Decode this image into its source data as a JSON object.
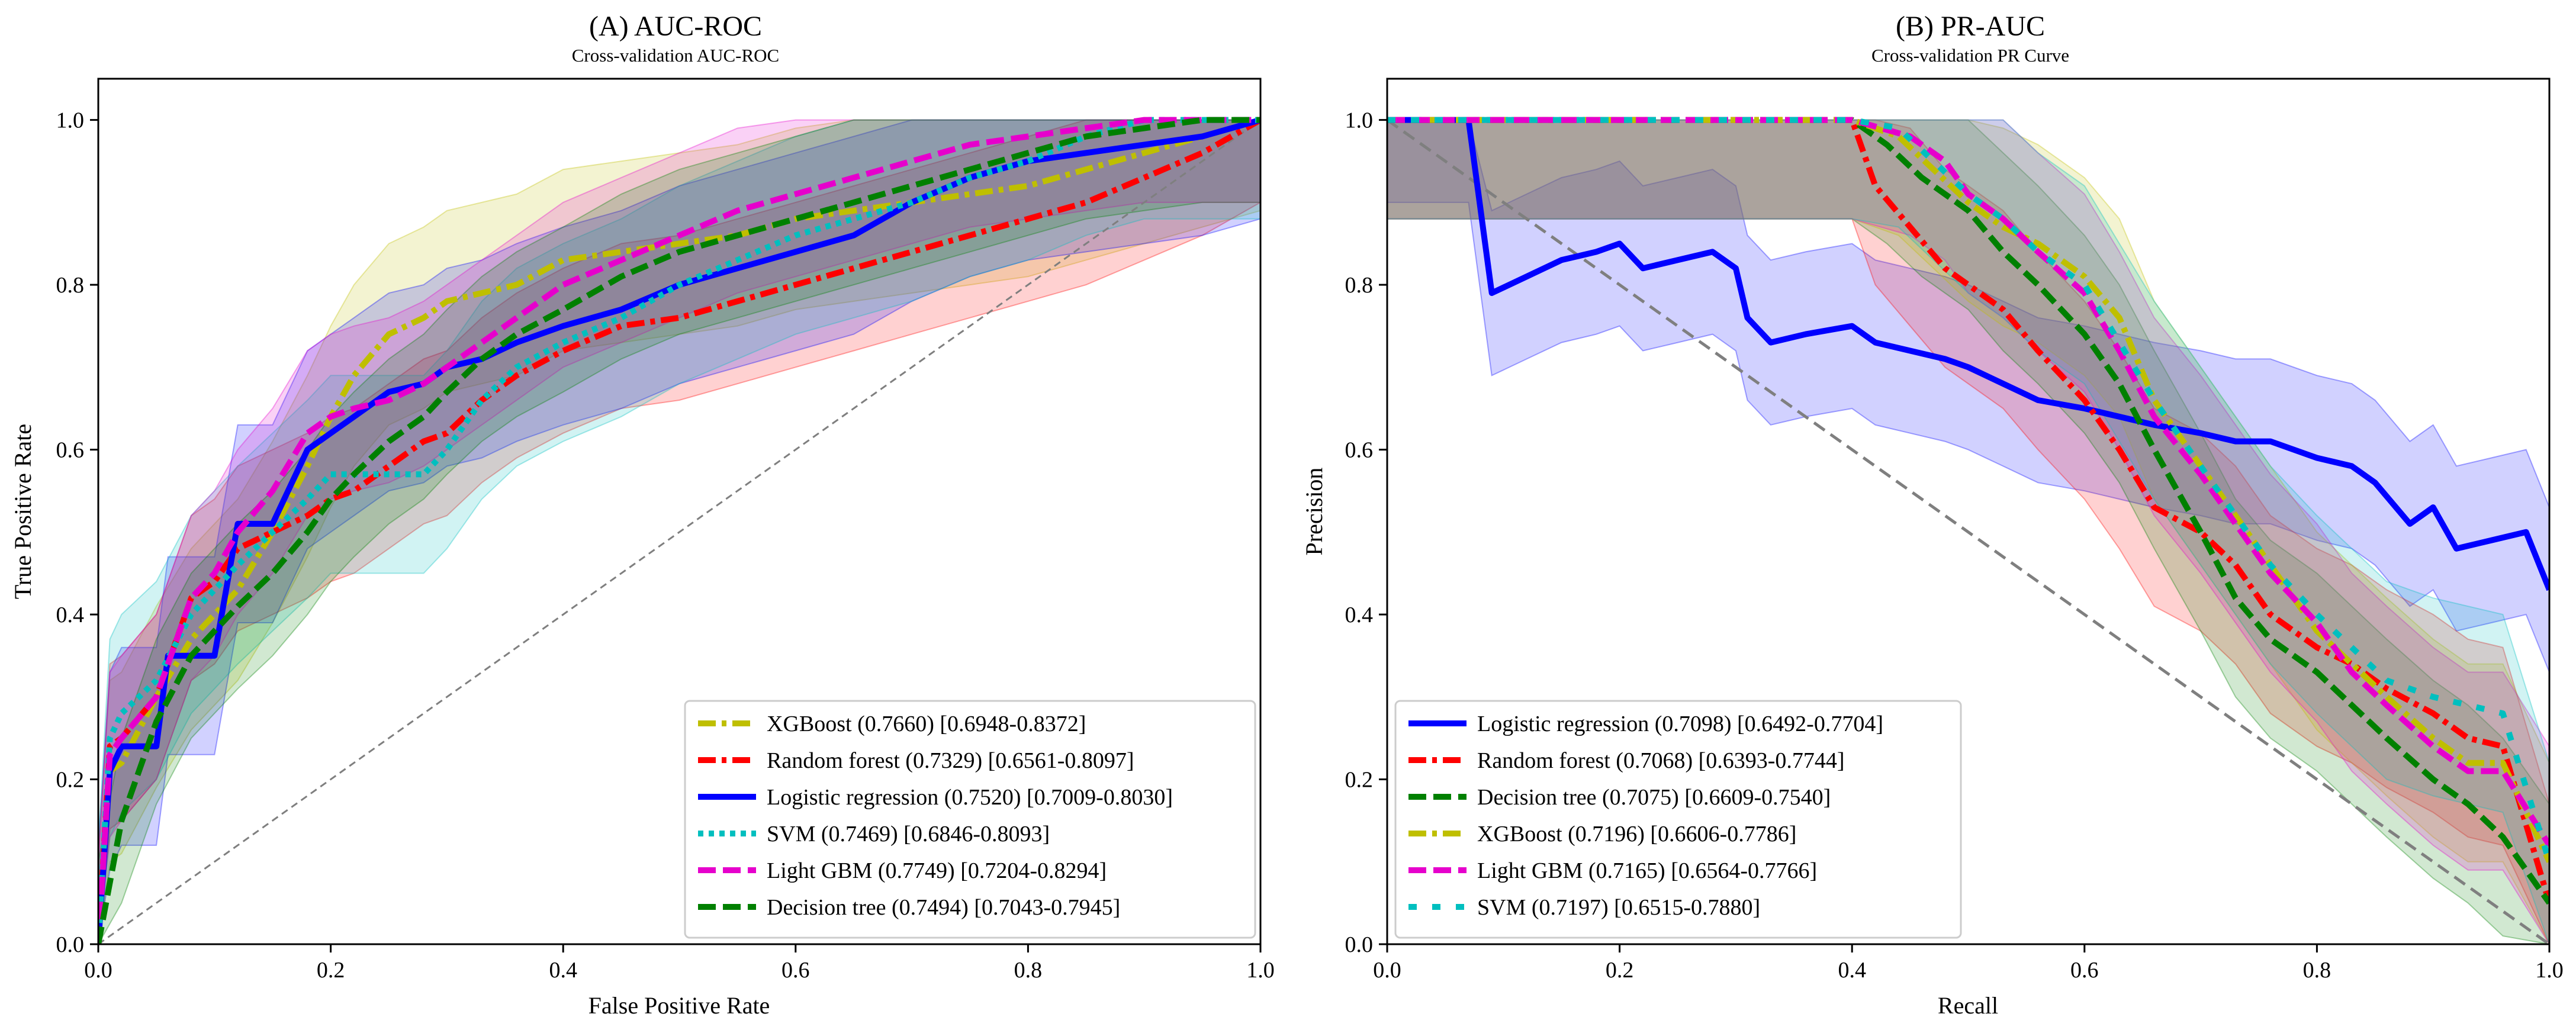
{
  "chart_data": [
    {
      "type": "line",
      "title": "(A) AUC-ROC",
      "subtitle": "Cross-validation AUC-ROC",
      "xlabel": "False Positive Rate",
      "ylabel": "True Positive Rate",
      "xlim": [
        0,
        1
      ],
      "ylim": [
        0,
        1.05
      ],
      "xticks": [
        "0.0",
        "0.2",
        "0.4",
        "0.6",
        "0.8",
        "1.0"
      ],
      "yticks": [
        "0.0",
        "0.2",
        "0.4",
        "0.6",
        "0.8",
        "1.0"
      ],
      "grid": false,
      "legend_position": "lower-right",
      "diagonal": true,
      "series": [
        {
          "name": "XGBoost (0.7660) [0.6948-0.8372]",
          "color": "#bfbf00",
          "dash": "dashdot",
          "x": [
            0,
            0.01,
            0.02,
            0.05,
            0.08,
            0.1,
            0.12,
            0.15,
            0.18,
            0.2,
            0.22,
            0.25,
            0.28,
            0.3,
            0.33,
            0.36,
            0.4,
            0.45,
            0.5,
            0.55,
            0.6,
            0.65,
            0.7,
            0.75,
            0.8,
            0.85,
            0.9,
            0.95,
            1.0
          ],
          "values": [
            0,
            0.21,
            0.22,
            0.3,
            0.37,
            0.4,
            0.43,
            0.5,
            0.58,
            0.64,
            0.69,
            0.74,
            0.76,
            0.78,
            0.79,
            0.8,
            0.83,
            0.84,
            0.85,
            0.86,
            0.88,
            0.89,
            0.9,
            0.91,
            0.92,
            0.94,
            0.96,
            0.98,
            1.0
          ],
          "band": 0.11
        },
        {
          "name": "Random forest (0.7329) [0.6561-0.8097]",
          "color": "#ff0000",
          "dash": "dashdot",
          "x": [
            0,
            0.01,
            0.02,
            0.05,
            0.08,
            0.1,
            0.12,
            0.15,
            0.18,
            0.2,
            0.22,
            0.25,
            0.28,
            0.3,
            0.33,
            0.36,
            0.4,
            0.45,
            0.5,
            0.55,
            0.6,
            0.65,
            0.7,
            0.75,
            0.8,
            0.85,
            0.9,
            0.95,
            1.0
          ],
          "values": [
            0,
            0.24,
            0.25,
            0.3,
            0.42,
            0.44,
            0.48,
            0.5,
            0.52,
            0.54,
            0.55,
            0.58,
            0.61,
            0.62,
            0.66,
            0.69,
            0.72,
            0.75,
            0.76,
            0.78,
            0.8,
            0.82,
            0.84,
            0.86,
            0.88,
            0.9,
            0.93,
            0.96,
            1.0
          ],
          "band": 0.1
        },
        {
          "name": "Logistic regression (0.7520) [0.7009-0.8030]",
          "color": "#0000ff",
          "dash": "solid",
          "x": [
            0,
            0.01,
            0.02,
            0.05,
            0.06,
            0.1,
            0.12,
            0.15,
            0.18,
            0.2,
            0.22,
            0.25,
            0.28,
            0.3,
            0.33,
            0.36,
            0.4,
            0.45,
            0.5,
            0.55,
            0.6,
            0.65,
            0.7,
            0.75,
            0.8,
            0.85,
            0.9,
            0.95,
            1.0
          ],
          "values": [
            0,
            0.21,
            0.24,
            0.24,
            0.35,
            0.35,
            0.51,
            0.51,
            0.6,
            0.62,
            0.64,
            0.67,
            0.68,
            0.7,
            0.71,
            0.73,
            0.75,
            0.77,
            0.8,
            0.82,
            0.84,
            0.86,
            0.9,
            0.93,
            0.95,
            0.96,
            0.97,
            0.98,
            1.0
          ],
          "band": 0.12
        },
        {
          "name": "SVM (0.7469) [0.6846-0.8093]",
          "color": "#00bfbf",
          "dash": "dotted",
          "x": [
            0,
            0.01,
            0.02,
            0.05,
            0.08,
            0.1,
            0.12,
            0.15,
            0.18,
            0.2,
            0.22,
            0.25,
            0.28,
            0.3,
            0.33,
            0.36,
            0.4,
            0.45,
            0.5,
            0.55,
            0.6,
            0.65,
            0.7,
            0.75,
            0.8,
            0.85,
            0.9,
            0.95,
            1.0
          ],
          "values": [
            0,
            0.25,
            0.28,
            0.32,
            0.4,
            0.43,
            0.46,
            0.5,
            0.54,
            0.57,
            0.57,
            0.57,
            0.57,
            0.6,
            0.66,
            0.7,
            0.73,
            0.76,
            0.8,
            0.83,
            0.86,
            0.88,
            0.9,
            0.93,
            0.95,
            0.98,
            1.0,
            1.0,
            1.0
          ],
          "band": 0.12
        },
        {
          "name": "Light GBM (0.7749) [0.7204-0.8294]",
          "color": "#e600cc",
          "dash": "dashed",
          "x": [
            0,
            0.01,
            0.02,
            0.05,
            0.08,
            0.1,
            0.12,
            0.15,
            0.18,
            0.2,
            0.22,
            0.25,
            0.28,
            0.3,
            0.33,
            0.36,
            0.4,
            0.45,
            0.5,
            0.55,
            0.6,
            0.65,
            0.7,
            0.75,
            0.8,
            0.85,
            0.9,
            0.95,
            1.0
          ],
          "values": [
            0,
            0.23,
            0.25,
            0.3,
            0.42,
            0.45,
            0.5,
            0.55,
            0.62,
            0.64,
            0.65,
            0.66,
            0.68,
            0.7,
            0.73,
            0.76,
            0.8,
            0.83,
            0.86,
            0.89,
            0.91,
            0.93,
            0.95,
            0.97,
            0.98,
            0.99,
            1.0,
            1.0,
            1.0
          ],
          "band": 0.1
        },
        {
          "name": "Decision tree (0.7494) [0.7043-0.7945]",
          "color": "#008000",
          "dash": "dashed",
          "x": [
            0,
            0.02,
            0.05,
            0.08,
            0.1,
            0.12,
            0.15,
            0.18,
            0.2,
            0.22,
            0.25,
            0.28,
            0.3,
            0.33,
            0.36,
            0.4,
            0.45,
            0.5,
            0.55,
            0.6,
            0.65,
            0.7,
            0.75,
            0.8,
            0.85,
            0.9,
            0.95,
            1.0
          ],
          "values": [
            0,
            0.15,
            0.27,
            0.35,
            0.38,
            0.41,
            0.45,
            0.5,
            0.54,
            0.57,
            0.61,
            0.64,
            0.67,
            0.71,
            0.74,
            0.77,
            0.81,
            0.84,
            0.86,
            0.88,
            0.9,
            0.92,
            0.94,
            0.96,
            0.98,
            0.99,
            1.0,
            1.0
          ],
          "band": 0.1
        }
      ]
    },
    {
      "type": "line",
      "title": "(B) PR-AUC",
      "subtitle": "Cross-validation PR Curve",
      "xlabel": "Recall",
      "ylabel": "Precision",
      "xlim": [
        0,
        1
      ],
      "ylim": [
        0,
        1.05
      ],
      "xticks": [
        "0.0",
        "0.2",
        "0.4",
        "0.6",
        "0.8",
        "1.0"
      ],
      "yticks": [
        "0.0",
        "0.2",
        "0.4",
        "0.6",
        "0.8",
        "1.0"
      ],
      "grid": false,
      "legend_position": "lower-left",
      "diagonal": true,
      "series": [
        {
          "name": "Logistic regression (0.7098) [0.6492-0.7704]",
          "color": "#0000ff",
          "dash": "solid",
          "x": [
            0,
            0.05,
            0.07,
            0.09,
            0.12,
            0.15,
            0.18,
            0.2,
            0.22,
            0.25,
            0.28,
            0.3,
            0.31,
            0.33,
            0.36,
            0.4,
            0.42,
            0.45,
            0.48,
            0.5,
            0.53,
            0.56,
            0.6,
            0.63,
            0.66,
            0.7,
            0.73,
            0.76,
            0.8,
            0.83,
            0.85,
            0.88,
            0.9,
            0.92,
            0.95,
            0.98,
            1.0
          ],
          "values": [
            1.0,
            1.0,
            1.0,
            0.79,
            0.81,
            0.83,
            0.84,
            0.85,
            0.82,
            0.83,
            0.84,
            0.82,
            0.76,
            0.73,
            0.74,
            0.75,
            0.73,
            0.72,
            0.71,
            0.7,
            0.68,
            0.66,
            0.65,
            0.64,
            0.63,
            0.62,
            0.61,
            0.61,
            0.59,
            0.58,
            0.56,
            0.51,
            0.53,
            0.48,
            0.49,
            0.5,
            0.43
          ],
          "band": 0.1
        },
        {
          "name": "Random forest (0.7068) [0.6393-0.7744]",
          "color": "#ff0000",
          "dash": "dashdot",
          "x": [
            0,
            0.1,
            0.2,
            0.3,
            0.4,
            0.42,
            0.45,
            0.48,
            0.5,
            0.53,
            0.56,
            0.6,
            0.63,
            0.66,
            0.7,
            0.73,
            0.76,
            0.8,
            0.83,
            0.86,
            0.9,
            0.93,
            0.96,
            1.0
          ],
          "values": [
            1.0,
            1.0,
            1.0,
            1.0,
            1.0,
            0.92,
            0.87,
            0.82,
            0.8,
            0.77,
            0.72,
            0.66,
            0.6,
            0.53,
            0.5,
            0.46,
            0.4,
            0.36,
            0.34,
            0.31,
            0.28,
            0.25,
            0.24,
            0.05
          ],
          "band": 0.12
        },
        {
          "name": "Decision tree (0.7075) [0.6609-0.7540]",
          "color": "#008000",
          "dash": "dashed",
          "x": [
            0,
            0.1,
            0.2,
            0.3,
            0.4,
            0.43,
            0.46,
            0.5,
            0.53,
            0.56,
            0.6,
            0.63,
            0.66,
            0.7,
            0.73,
            0.76,
            0.8,
            0.83,
            0.86,
            0.9,
            0.93,
            0.96,
            1.0
          ],
          "values": [
            1.0,
            1.0,
            1.0,
            1.0,
            1.0,
            0.97,
            0.93,
            0.89,
            0.84,
            0.8,
            0.74,
            0.68,
            0.6,
            0.5,
            0.42,
            0.37,
            0.33,
            0.29,
            0.25,
            0.2,
            0.17,
            0.13,
            0.05
          ],
          "band": 0.12
        },
        {
          "name": "XGBoost (0.7196) [0.6606-0.7786]",
          "color": "#bfbf00",
          "dash": "dashdot",
          "x": [
            0,
            0.1,
            0.2,
            0.3,
            0.4,
            0.44,
            0.47,
            0.5,
            0.53,
            0.56,
            0.6,
            0.63,
            0.66,
            0.7,
            0.73,
            0.76,
            0.8,
            0.83,
            0.86,
            0.9,
            0.93,
            0.96,
            1.0
          ],
          "values": [
            1.0,
            1.0,
            1.0,
            1.0,
            1.0,
            0.98,
            0.94,
            0.9,
            0.87,
            0.85,
            0.81,
            0.76,
            0.66,
            0.58,
            0.52,
            0.46,
            0.38,
            0.34,
            0.3,
            0.25,
            0.22,
            0.22,
            0.1
          ],
          "band": 0.12
        },
        {
          "name": "Light GBM (0.7165) [0.6564-0.7766]",
          "color": "#e600cc",
          "dash": "dashed",
          "x": [
            0,
            0.1,
            0.2,
            0.3,
            0.4,
            0.45,
            0.48,
            0.5,
            0.53,
            0.56,
            0.6,
            0.63,
            0.66,
            0.7,
            0.73,
            0.76,
            0.8,
            0.83,
            0.86,
            0.9,
            0.93,
            0.96,
            1.0
          ],
          "values": [
            1.0,
            1.0,
            1.0,
            1.0,
            1.0,
            0.98,
            0.95,
            0.91,
            0.88,
            0.84,
            0.79,
            0.72,
            0.64,
            0.57,
            0.51,
            0.45,
            0.39,
            0.33,
            0.29,
            0.24,
            0.21,
            0.21,
            0.12
          ],
          "band": 0.12
        },
        {
          "name": "SVM (0.7197) [0.6515-0.7880]",
          "color": "#00bfbf",
          "dash": "sparse",
          "x": [
            0,
            0.1,
            0.2,
            0.3,
            0.4,
            0.44,
            0.47,
            0.5,
            0.53,
            0.56,
            0.6,
            0.63,
            0.66,
            0.7,
            0.73,
            0.76,
            0.8,
            0.83,
            0.86,
            0.9,
            0.93,
            0.96,
            1.0
          ],
          "values": [
            1.0,
            1.0,
            1.0,
            1.0,
            1.0,
            0.99,
            0.95,
            0.91,
            0.88,
            0.84,
            0.8,
            0.73,
            0.66,
            0.58,
            0.52,
            0.46,
            0.4,
            0.36,
            0.32,
            0.3,
            0.29,
            0.28,
            0.1
          ],
          "band": 0.12
        }
      ]
    }
  ]
}
